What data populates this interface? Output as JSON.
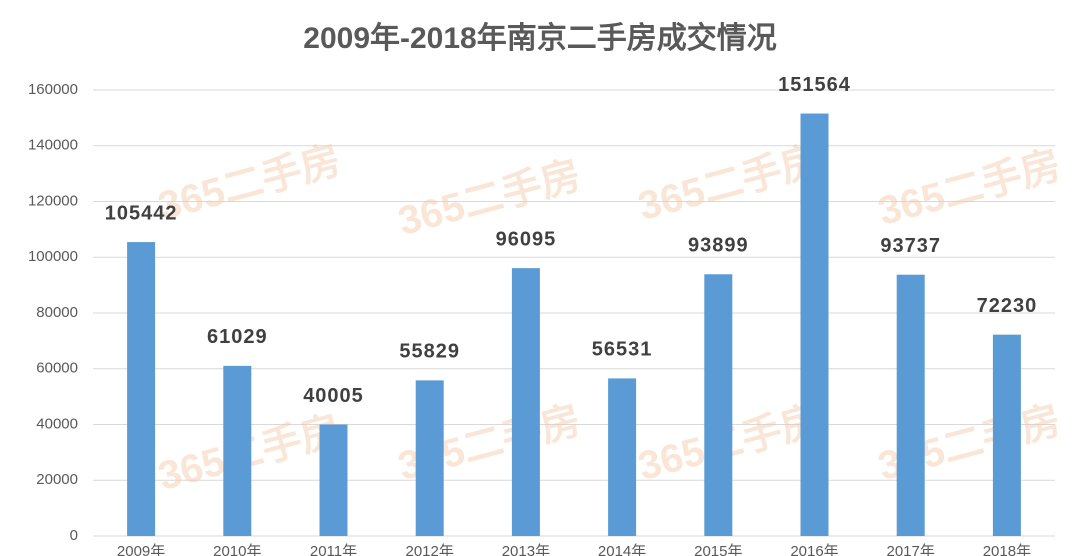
{
  "chart_data": {
    "type": "bar",
    "title": "2009年-2018年南京二手房成交情况",
    "categories": [
      "2009年",
      "2010年",
      "2011年",
      "2012年",
      "2013年",
      "2014年",
      "2015年",
      "2016年",
      "2017年",
      "2018年"
    ],
    "values": [
      105442,
      61029,
      40005,
      55829,
      96095,
      56531,
      93899,
      151564,
      93737,
      72230
    ],
    "color": "#5b9bd5",
    "ylim": [
      0,
      160000
    ],
    "yticks": [
      0,
      20000,
      40000,
      60000,
      80000,
      100000,
      120000,
      140000,
      160000
    ],
    "grid": true,
    "watermark": "365二手房"
  }
}
